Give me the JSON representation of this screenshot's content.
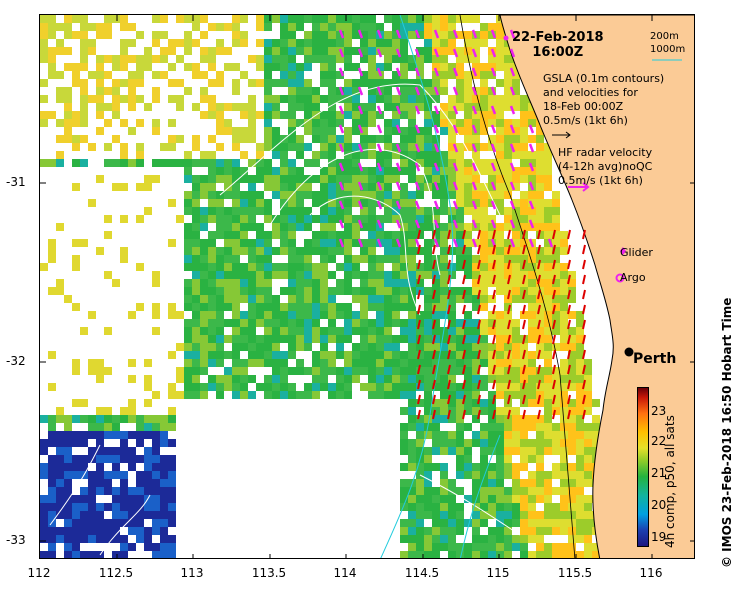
{
  "map": {
    "date_line1": "22-Feb-2018",
    "date_line2": "16:00Z",
    "x_ticks": [
      "112",
      "112.5",
      "113",
      "113.5",
      "114",
      "114.5",
      "115",
      "115.5",
      "116"
    ],
    "y_ticks": [
      "-31",
      "-32",
      "-33"
    ]
  },
  "legend": {
    "contour_200": "200m",
    "contour_1000": "1000m",
    "gsla_line1": "GSLA (0.1m contours)",
    "gsla_line2": "and velocities for",
    "gsla_line3": "18-Feb 00:00Z",
    "gsla_scale": "0.5m/s (1kt 6h)",
    "hf_line1": "HF radar velocity",
    "hf_line2": "(4-12h avg)noQC",
    "hf_scale": "0.5m/s (1kt 6h)",
    "glider": "Glider",
    "argo": "Argo",
    "city": "Perth"
  },
  "colorbar": {
    "ticks": [
      "23",
      "22",
      "21",
      "20",
      "19"
    ],
    "title": "4h comp, p50, all sats"
  },
  "credit": "©  IMOS 23-Feb-2018 16:50 Hobart Time",
  "colors": {
    "land": "#fbcb96",
    "contour_200": "#000000",
    "contour_1000": "#22ccdd",
    "gsla_contour": "#ffffff",
    "hf_arrow": "#ee22ee",
    "gsla_arrow": "#dd0000"
  }
}
